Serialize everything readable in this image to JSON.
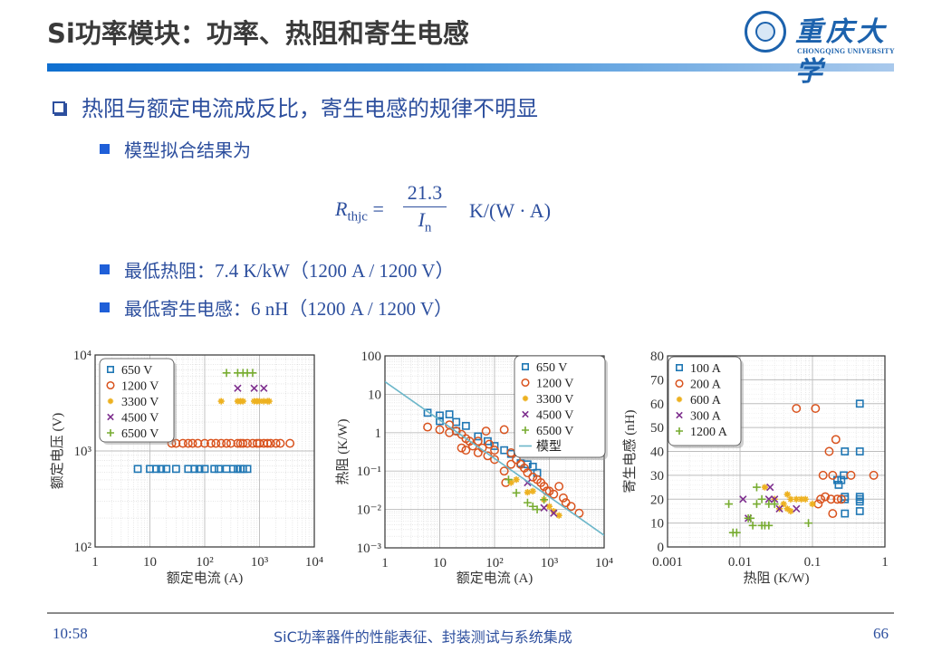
{
  "slide": {
    "title": "Si功率模块：功率、热阻和寄生电感",
    "logo": {
      "name_cn": "重庆大学",
      "name_en": "CHONGQING UNIVERSITY"
    },
    "main_bullet": "热阻与额定电流成反比，寄生电感的规律不明显",
    "sub_bullets": [
      {
        "label": "模型拟合结果为",
        "value": ""
      },
      {
        "label": "最低热阻：",
        "value": "7.4 K/kW（1200 A / 1200 V）"
      },
      {
        "label": "最低寄生电感：",
        "value": "6 nH（1200 A / 1200 V）"
      }
    ],
    "formula": {
      "lhs_symbol": "R",
      "lhs_sub": "thjc",
      "equals": "=",
      "numerator": "21.3",
      "denominator_symbol": "I",
      "denominator_sub": "n",
      "unit": "K/(W · A)"
    },
    "footer": {
      "time": "10:58",
      "center": "SiC功率器件的性能表征、封装测试与系统集成",
      "page": "66"
    },
    "colors": {
      "title_text": "#3a3a3a",
      "body_text": "#2d4f9e",
      "bullet_square": "#1f5fd8",
      "bar_start": "#0f6fd0",
      "bar_end": "#a9c9ec",
      "s650": "#1f77b4",
      "s1200": "#d9531e",
      "s3300": "#edb120",
      "s4500": "#7e2f8e",
      "s6500": "#77ac30",
      "model": "#6bb6c9"
    }
  },
  "chart_data": [
    {
      "type": "scatter",
      "title": "",
      "xlabel": "额定电流 (A)",
      "ylabel": "额定电压 (V)",
      "xscale": "log",
      "yscale": "log",
      "xlim": [
        1,
        10000
      ],
      "ylim": [
        100,
        10000
      ],
      "xticks": [
        "1",
        "10",
        "10²",
        "10³",
        "10⁴"
      ],
      "yticks": [
        "10²",
        "10³",
        "10⁴"
      ],
      "grid": true,
      "legend_position": "upper left",
      "series": [
        {
          "name": "650 V",
          "marker": "square",
          "color": "#1f77b4",
          "x": [
            6,
            10,
            13,
            16,
            20,
            30,
            50,
            65,
            80,
            100,
            150,
            180,
            250,
            330,
            400,
            450,
            500,
            600
          ],
          "y": [
            650,
            650,
            650,
            650,
            650,
            650,
            650,
            650,
            650,
            650,
            650,
            650,
            650,
            650,
            650,
            650,
            650,
            650
          ]
        },
        {
          "name": "1200 V",
          "marker": "circle",
          "color": "#d9531e",
          "x": [
            25,
            30,
            40,
            50,
            60,
            75,
            100,
            130,
            160,
            200,
            250,
            300,
            400,
            450,
            500,
            600,
            750,
            900,
            1000,
            1200,
            1400,
            1600,
            2000,
            2400,
            3600
          ],
          "y": [
            1200,
            1200,
            1200,
            1200,
            1200,
            1200,
            1200,
            1200,
            1200,
            1200,
            1200,
            1200,
            1200,
            1200,
            1200,
            1200,
            1200,
            1200,
            1200,
            1200,
            1200,
            1200,
            1200,
            1200,
            1200
          ]
        },
        {
          "name": "3300 V",
          "marker": "asterisk",
          "color": "#edb120",
          "x": [
            200,
            400,
            450,
            500,
            800,
            900,
            1000,
            1200,
            1400,
            1500
          ],
          "y": [
            3300,
            3300,
            3300,
            3300,
            3300,
            3300,
            3300,
            3300,
            3300,
            3300
          ]
        },
        {
          "name": "4500 V",
          "marker": "x",
          "color": "#7e2f8e",
          "x": [
            400,
            800,
            1200
          ],
          "y": [
            4500,
            4500,
            4500
          ]
        },
        {
          "name": "6500 V",
          "marker": "plus",
          "color": "#77ac30",
          "x": [
            250,
            400,
            500,
            600,
            750
          ],
          "y": [
            6500,
            6500,
            6500,
            6500,
            6500
          ]
        }
      ]
    },
    {
      "type": "scatter",
      "title": "",
      "xlabel": "额定电流 (A)",
      "ylabel": "热阻 (K/W)",
      "xscale": "log",
      "yscale": "log",
      "xlim": [
        1,
        10000
      ],
      "ylim": [
        0.001,
        100
      ],
      "xticks": [
        "1",
        "10",
        "10²",
        "10³",
        "10⁴"
      ],
      "yticks": [
        "10⁻³",
        "10⁻²",
        "10⁻¹",
        "1",
        "10",
        "100"
      ],
      "grid": true,
      "legend_position": "upper right",
      "series": [
        {
          "name": "650 V",
          "marker": "square",
          "color": "#1f77b4",
          "x": [
            6,
            10,
            10,
            15,
            20,
            20,
            30,
            50,
            75,
            100,
            150,
            200,
            300,
            400,
            500,
            600
          ],
          "y": [
            3.3,
            2.8,
            2.0,
            3.0,
            1.9,
            1.1,
            1.5,
            0.8,
            0.6,
            0.45,
            0.35,
            0.28,
            0.16,
            0.15,
            0.13,
            0.09
          ]
        },
        {
          "name": "1200 V",
          "marker": "circle",
          "color": "#d9531e",
          "x": [
            6,
            10,
            15,
            15,
            20,
            25,
            25,
            30,
            30,
            35,
            40,
            50,
            50,
            60,
            70,
            75,
            80,
            100,
            100,
            150,
            150,
            160,
            200,
            200,
            250,
            300,
            350,
            400,
            500,
            600,
            700,
            800,
            900,
            1000,
            1200,
            1500,
            1800,
            2000,
            2500,
            3500
          ],
          "y": [
            1.4,
            1.2,
            1.6,
            1.0,
            1.1,
            0.9,
            0.4,
            0.7,
            0.35,
            0.6,
            0.45,
            0.6,
            0.3,
            0.4,
            1.1,
            0.25,
            0.5,
            0.35,
            0.2,
            1.2,
            0.1,
            0.05,
            0.3,
            0.15,
            0.2,
            0.15,
            0.12,
            0.09,
            0.07,
            0.06,
            0.05,
            0.04,
            0.03,
            0.03,
            0.025,
            0.04,
            0.02,
            0.015,
            0.012,
            0.008
          ]
        },
        {
          "name": "3300 V",
          "marker": "asterisk",
          "color": "#edb120",
          "x": [
            200,
            250,
            400,
            500,
            800,
            1000,
            1200,
            1500
          ],
          "y": [
            0.05,
            0.06,
            0.028,
            0.03,
            0.018,
            0.012,
            0.009,
            0.007
          ]
        },
        {
          "name": "4500 V",
          "marker": "x",
          "color": "#7e2f8e",
          "x": [
            400,
            800,
            1200
          ],
          "y": [
            0.05,
            0.011,
            0.008
          ]
        },
        {
          "name": "6500 V",
          "marker": "plus",
          "color": "#77ac30",
          "x": [
            180,
            250,
            400,
            500,
            600,
            800
          ],
          "y": [
            0.06,
            0.027,
            0.015,
            0.012,
            0.01,
            0.018
          ]
        },
        {
          "name": "模型",
          "marker": "line",
          "color": "#6bb6c9",
          "x": [
            1,
            10000
          ],
          "y": [
            21.3,
            0.00213
          ]
        }
      ]
    },
    {
      "type": "scatter",
      "title": "",
      "xlabel": "热阻 (K/W)",
      "ylabel": "寄生电感 (nH)",
      "xscale": "log",
      "yscale": "linear",
      "xlim": [
        0.001,
        1
      ],
      "ylim": [
        0,
        80
      ],
      "xticks": [
        "0.001",
        "0.01",
        "0.1",
        "1"
      ],
      "yticks": [
        "0",
        "10",
        "20",
        "30",
        "40",
        "50",
        "60",
        "70",
        "80"
      ],
      "grid": true,
      "legend_position": "upper left",
      "series": [
        {
          "name": "100 A",
          "marker": "square",
          "color": "#1f77b4",
          "x": [
            0.45,
            0.28,
            0.45,
            0.27,
            0.25,
            0.23,
            0.22,
            0.28,
            0.28,
            0.45,
            0.45,
            0.45,
            0.28,
            0.45
          ],
          "y": [
            60,
            40,
            40,
            30,
            28,
            26,
            28,
            21,
            20,
            21,
            20,
            19,
            14,
            15
          ]
        },
        {
          "name": "200 A",
          "marker": "circle",
          "color": "#d9531e",
          "x": [
            0.06,
            0.11,
            0.21,
            0.17,
            0.14,
            0.19,
            0.34,
            0.7,
            0.13,
            0.15,
            0.18,
            0.22,
            0.25,
            0.12,
            0.19
          ],
          "y": [
            58,
            58,
            45,
            40,
            30,
            30,
            30,
            30,
            20,
            21,
            20,
            20,
            20,
            18,
            14
          ]
        },
        {
          "name": "600 A",
          "marker": "asterisk",
          "color": "#edb120",
          "x": [
            0.022,
            0.03,
            0.04,
            0.045,
            0.05,
            0.06,
            0.07,
            0.08,
            0.1,
            0.045,
            0.035,
            0.05
          ],
          "y": [
            25,
            20,
            18,
            22,
            20,
            20,
            20,
            20,
            18,
            16,
            16,
            15
          ]
        },
        {
          "name": "300 A",
          "marker": "x",
          "color": "#7e2f8e",
          "x": [
            0.011,
            0.026,
            0.025,
            0.03,
            0.035,
            0.06,
            0.013
          ],
          "y": [
            20,
            25,
            20,
            20,
            16,
            16,
            12
          ]
        },
        {
          "name": "1200 A",
          "marker": "plus",
          "color": "#77ac30",
          "x": [
            0.007,
            0.017,
            0.017,
            0.02,
            0.025,
            0.03,
            0.014,
            0.015,
            0.02,
            0.022,
            0.025,
            0.088,
            0.008,
            0.009,
            0.013
          ],
          "y": [
            18,
            25,
            18,
            20,
            18,
            18,
            12,
            9,
            9,
            9,
            9,
            10,
            6,
            6,
            12
          ]
        }
      ]
    }
  ]
}
